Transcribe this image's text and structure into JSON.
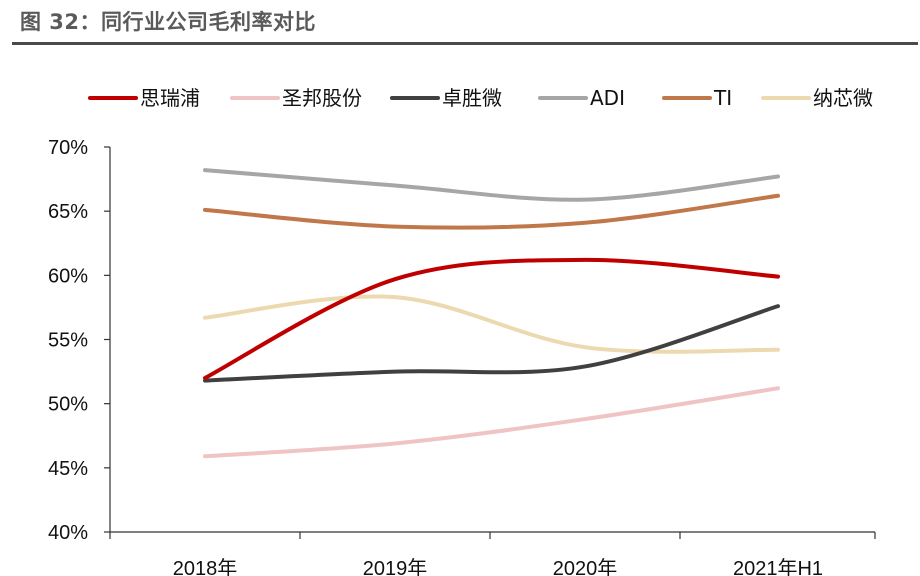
{
  "header": {
    "title": "图 32：同行业公司毛利率对比"
  },
  "chart_data": {
    "type": "line",
    "title": "",
    "xlabel": "",
    "ylabel": "",
    "categories": [
      "2018年",
      "2019年",
      "2020年",
      "2021年H1"
    ],
    "ylim": [
      0.4,
      0.7
    ],
    "y_ticks": [
      "40%",
      "45%",
      "50%",
      "55%",
      "60%",
      "65%",
      "70%"
    ],
    "grid": false,
    "legend_position": "top",
    "series": [
      {
        "name": "思瑞浦",
        "color": "#c00000",
        "values": [
          0.52,
          0.597,
          0.612,
          0.599
        ]
      },
      {
        "name": "圣邦股份",
        "color": "#f0c4c4",
        "values": [
          0.459,
          0.469,
          0.488,
          0.512
        ]
      },
      {
        "name": "卓胜微",
        "color": "#404040",
        "values": [
          0.518,
          0.525,
          0.529,
          0.576
        ]
      },
      {
        "name": "ADI",
        "color": "#a6a6a6",
        "values": [
          0.682,
          0.67,
          0.659,
          0.677
        ]
      },
      {
        "name": "TI",
        "color": "#c0784a",
        "values": [
          0.651,
          0.638,
          0.641,
          0.662
        ]
      },
      {
        "name": "纳芯微",
        "color": "#ecd9b0",
        "values": [
          0.567,
          0.583,
          0.544,
          0.542
        ]
      }
    ]
  }
}
